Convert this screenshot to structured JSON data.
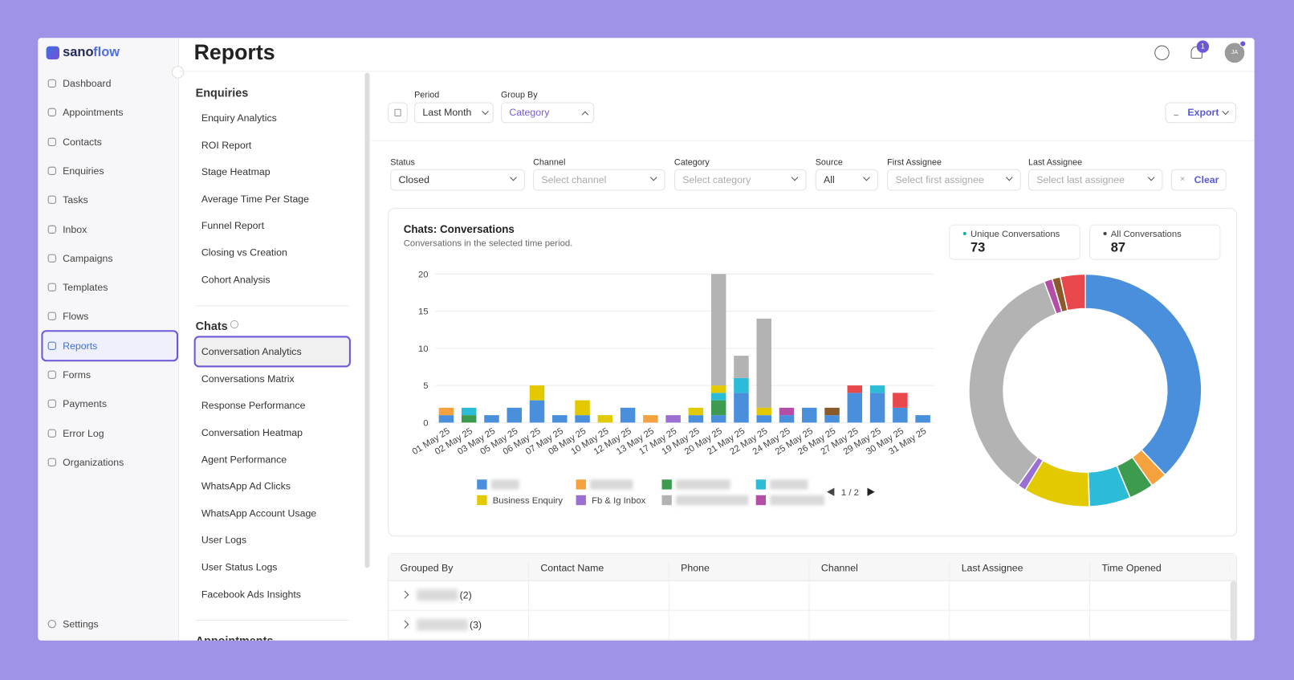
{
  "brand": [
    "sano",
    "flow"
  ],
  "nav": {
    "items": [
      "Dashboard",
      "Appointments",
      "Contacts",
      "Enquiries",
      "Tasks",
      "Inbox",
      "Campaigns",
      "Templates",
      "Flows",
      "Reports",
      "Forms",
      "Payments",
      "Error Log",
      "Organizations"
    ],
    "active": 9,
    "footer": "Settings"
  },
  "header": {
    "title": "Reports",
    "notifications": "1",
    "avatar": "JA"
  },
  "submenu": {
    "sections": [
      {
        "title": "Enquiries",
        "items": [
          "Enquiry Analytics",
          "ROI Report",
          "Stage Heatmap",
          "Average Time Per Stage",
          "Funnel Report",
          "Closing vs Creation",
          "Cohort Analysis"
        ]
      },
      {
        "title": "Chats",
        "items": [
          "Conversation Analytics",
          "Conversations Matrix",
          "Response Performance",
          "Conversation Heatmap",
          "Agent Performance",
          "WhatsApp Ad Clicks",
          "WhatsApp Account Usage",
          "User Logs",
          "User Status Logs",
          "Facebook Ads Insights"
        ]
      },
      {
        "title": "Appointments",
        "items": []
      }
    ],
    "active": [
      1,
      0
    ]
  },
  "controls": {
    "period": {
      "label": "Period",
      "value": "Last Month"
    },
    "group_by": {
      "label": "Group By",
      "value": "Category"
    },
    "export": "Export"
  },
  "filters": {
    "fields": [
      {
        "label": "Status",
        "value": "Closed"
      },
      {
        "label": "Channel",
        "placeholder": "Select channel"
      },
      {
        "label": "Category",
        "placeholder": "Select category"
      },
      {
        "label": "Source",
        "value": "All"
      },
      {
        "label": "First Assignee",
        "placeholder": "Select first assignee"
      },
      {
        "label": "Last Assignee",
        "placeholder": "Select last assignee"
      }
    ],
    "clear": "Clear"
  },
  "stats": [
    {
      "label": "Unique Conversations",
      "value": 73,
      "color": "#19b59c"
    },
    {
      "label": "All Conversations",
      "value": 87,
      "color": "#444444"
    }
  ],
  "chart_data": {
    "type": "bar",
    "stacked": true,
    "donut": true,
    "title": "Chats: Conversations",
    "subtitle": "Conversations in the selected time period.",
    "categories": [
      "01 May 25",
      "02 May 25",
      "03 May 25",
      "05 May 25",
      "06 May 25",
      "07 May 25",
      "08 May 25",
      "10 May 25",
      "12 May 25",
      "13 May 25",
      "17 May 25",
      "19 May 25",
      "20 May 25",
      "21 May 25",
      "22 May 25",
      "24 May 25",
      "25 May 25",
      "26 May 25",
      "27 May 25",
      "29 May 25",
      "30 May 25",
      "31 May 25"
    ],
    "series": [
      {
        "name": null,
        "color": "#4a8fdc",
        "values": [
          1,
          0,
          1,
          2,
          3,
          1,
          1,
          0,
          2,
          0,
          0,
          1,
          1,
          4,
          1,
          1,
          2,
          1,
          4,
          4,
          2,
          1
        ]
      },
      {
        "name": null,
        "color": "#f5a23e",
        "values": [
          1,
          0,
          0,
          0,
          0,
          0,
          0,
          0,
          0,
          1,
          0,
          0,
          0,
          0,
          0,
          0,
          0,
          0,
          0,
          0,
          0,
          0
        ]
      },
      {
        "name": null,
        "color": "#3d9b50",
        "values": [
          0,
          1,
          0,
          0,
          0,
          0,
          0,
          0,
          0,
          0,
          0,
          0,
          2,
          0,
          0,
          0,
          0,
          0,
          0,
          0,
          0,
          0
        ]
      },
      {
        "name": null,
        "color": "#2cbcd8",
        "values": [
          0,
          1,
          0,
          0,
          0,
          0,
          0,
          0,
          0,
          0,
          0,
          0,
          1,
          2,
          0,
          0,
          0,
          0,
          0,
          1,
          0,
          0
        ]
      },
      {
        "name": "Business Enquiry",
        "color": "#e2c900",
        "values": [
          0,
          0,
          0,
          0,
          2,
          0,
          2,
          1,
          0,
          0,
          0,
          1,
          1,
          0,
          1,
          0,
          0,
          0,
          0,
          0,
          0,
          0
        ]
      },
      {
        "name": "Fb & Ig Inbox",
        "color": "#9c6fd2",
        "values": [
          0,
          0,
          0,
          0,
          0,
          0,
          0,
          0,
          0,
          0,
          1,
          0,
          0,
          0,
          0,
          0,
          0,
          0,
          0,
          0,
          0,
          0
        ]
      },
      {
        "name": null,
        "color": "#b3b3b3",
        "values": [
          0,
          0,
          0,
          0,
          0,
          0,
          0,
          0,
          0,
          0,
          0,
          0,
          15,
          3,
          12,
          0,
          0,
          0,
          0,
          0,
          0,
          0
        ]
      },
      {
        "name": null,
        "color": "#b54ea6",
        "values": [
          0,
          0,
          0,
          0,
          0,
          0,
          0,
          0,
          0,
          0,
          0,
          0,
          0,
          0,
          0,
          1,
          0,
          0,
          0,
          0,
          0,
          0
        ]
      },
      {
        "name": null,
        "color": "#8b5a2b",
        "values": [
          0,
          0,
          0,
          0,
          0,
          0,
          0,
          0,
          0,
          0,
          0,
          0,
          0,
          0,
          0,
          0,
          0,
          1,
          0,
          0,
          0,
          0
        ]
      },
      {
        "name": null,
        "color": "#e8484c",
        "values": [
          0,
          0,
          0,
          0,
          0,
          0,
          0,
          0,
          0,
          0,
          0,
          0,
          0,
          0,
          0,
          0,
          0,
          0,
          1,
          0,
          2,
          0
        ]
      }
    ],
    "ylim": [
      0,
      20
    ],
    "yticks": [
      0,
      5,
      10,
      15,
      20
    ],
    "grid": true,
    "legend_page": "1 / 2"
  },
  "table": {
    "columns": [
      "Grouped By",
      "Contact Name",
      "Phone",
      "Channel",
      "Last Assignee",
      "Time Opened"
    ],
    "rows": [
      {
        "count": "(2)"
      },
      {
        "count": "(3)"
      }
    ]
  }
}
